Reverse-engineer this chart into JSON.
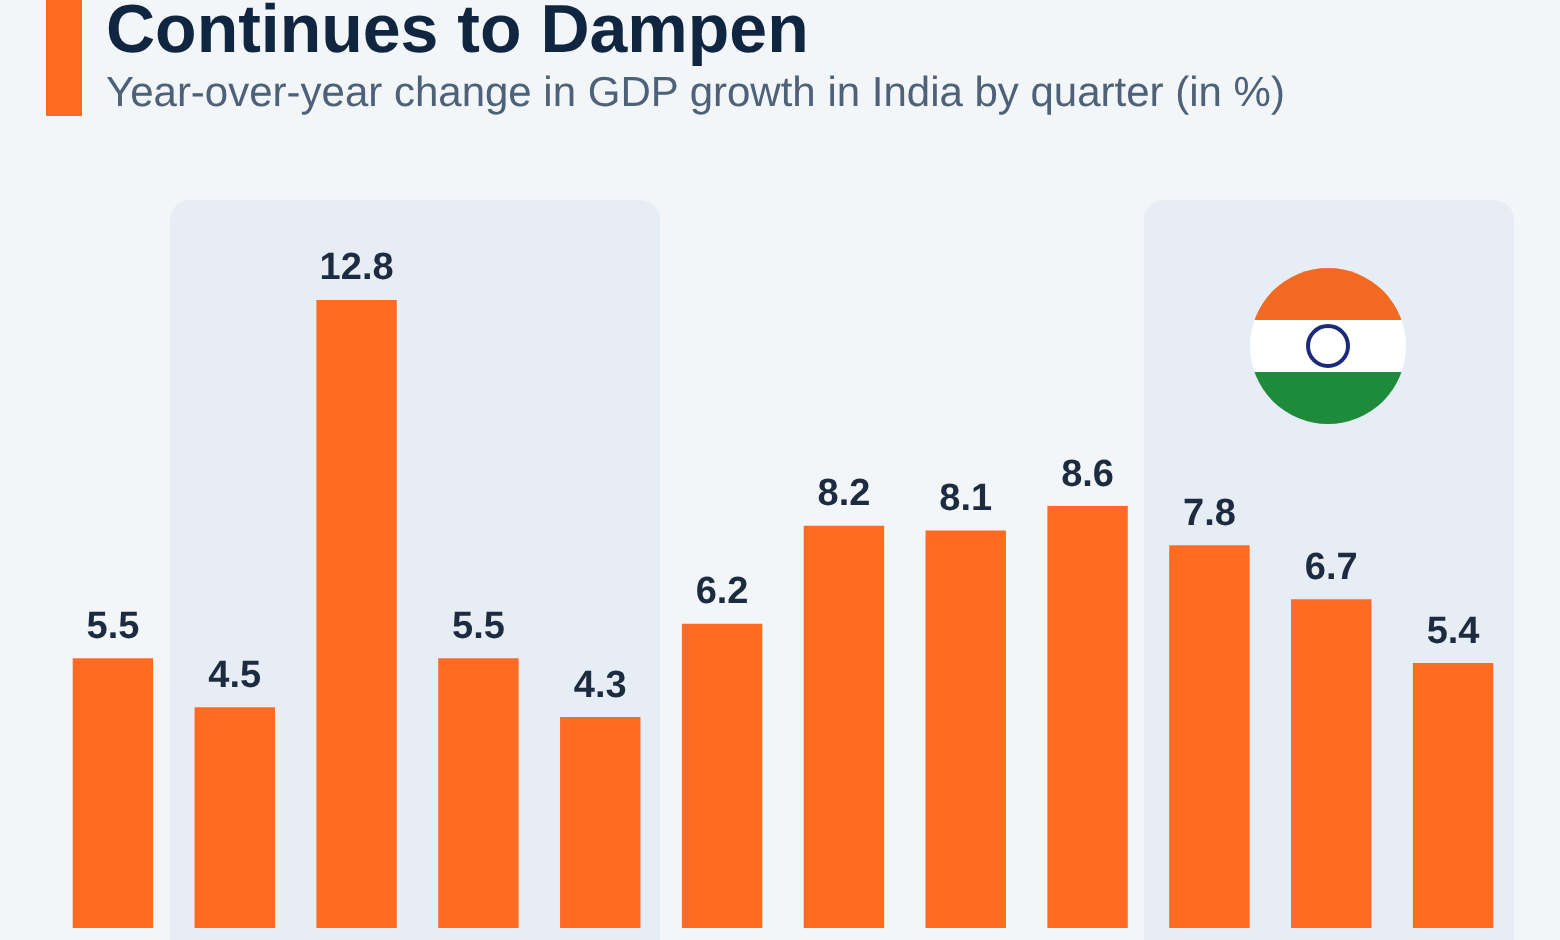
{
  "chart_data": {
    "type": "bar",
    "title": "Continues to Dampen",
    "subtitle": "Year-over-year change in GDP growth in India by quarter (in %)",
    "categories": [
      null,
      null,
      null,
      null,
      null,
      null,
      null,
      null,
      null,
      null,
      null,
      null
    ],
    "values": [
      5.5,
      4.5,
      12.8,
      5.5,
      4.3,
      6.2,
      8.2,
      8.1,
      8.6,
      7.8,
      6.7,
      5.4
    ],
    "color": "#ff6b23",
    "data_labels": true
  }
}
